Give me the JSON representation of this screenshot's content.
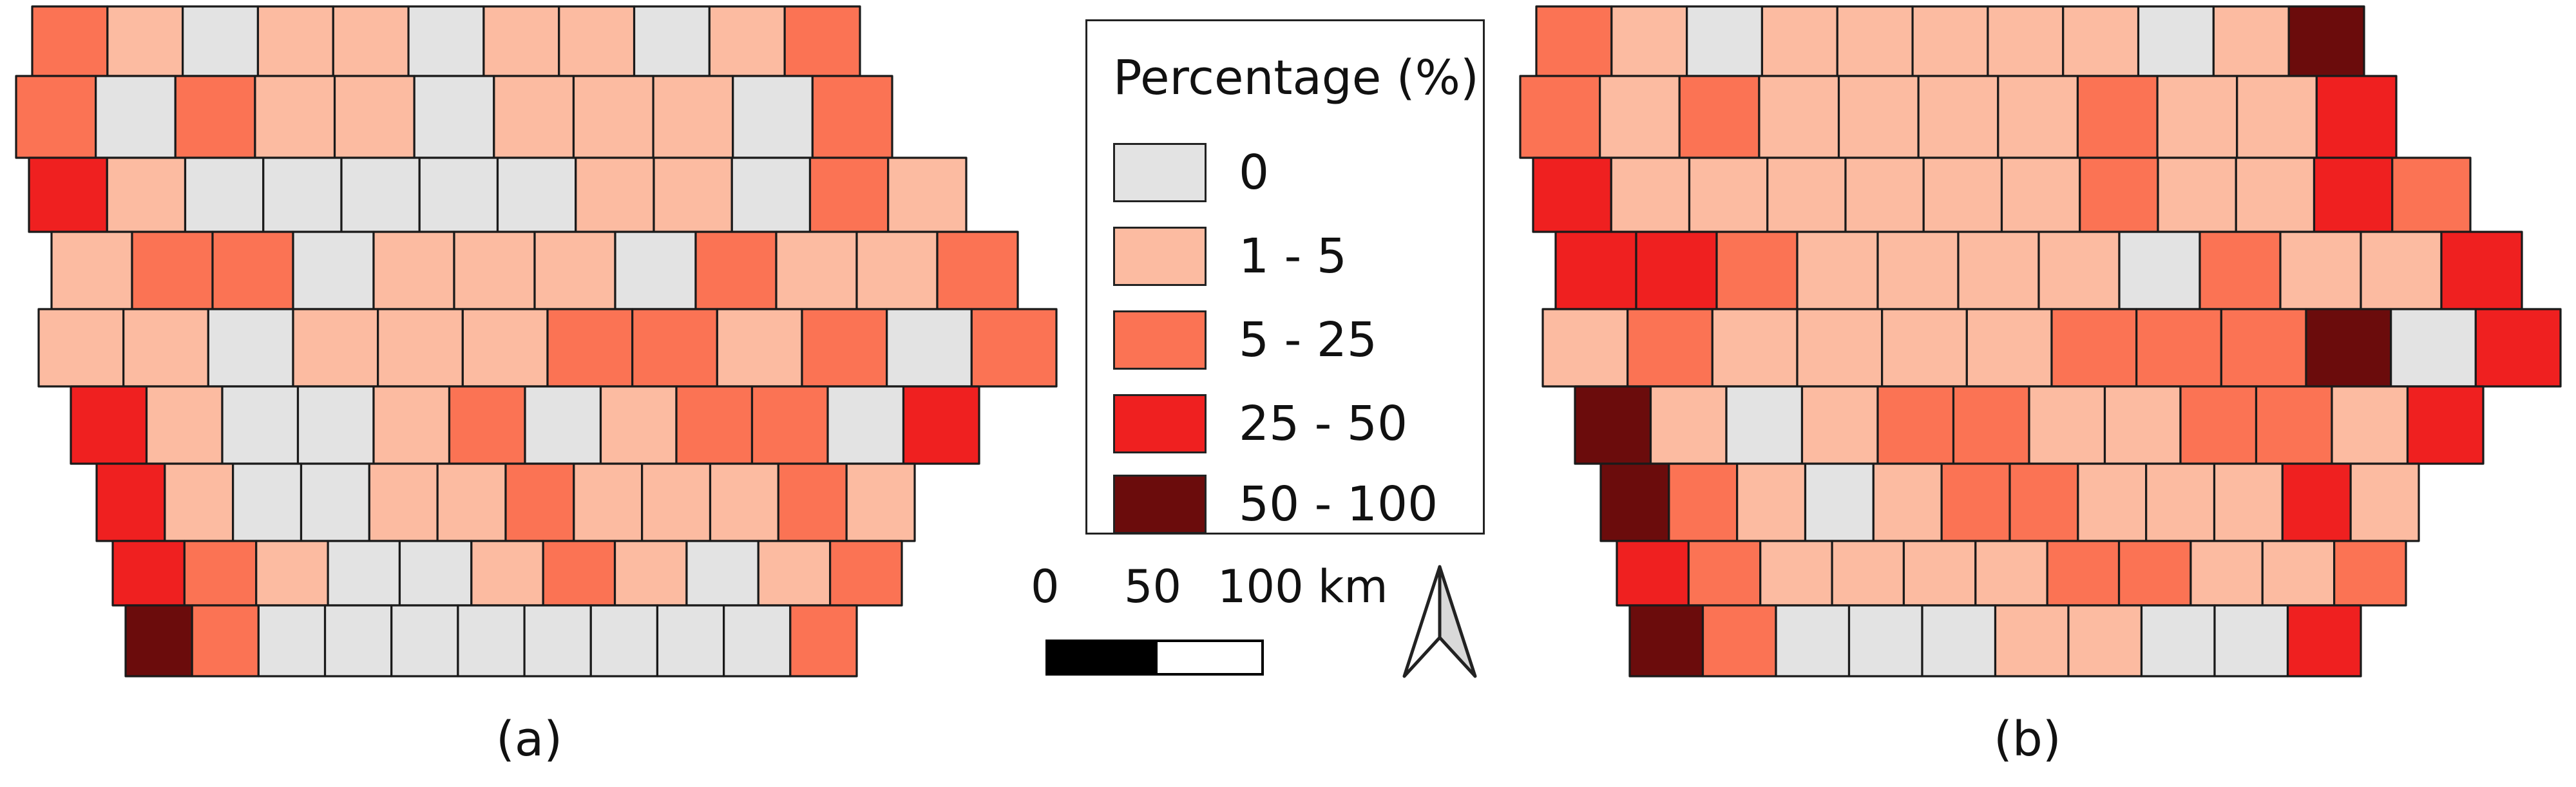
{
  "colors": {
    "0": "#e3e3e3",
    "1-5": "#fcbba1",
    "5-25": "#fb7354",
    "25-50": "#ef2020",
    "50-100": "#6b0c0c"
  },
  "legend": {
    "title": "Percentage (%)",
    "classes": [
      {
        "key": "0",
        "label": "0"
      },
      {
        "key": "1-5",
        "label": "1 - 5"
      },
      {
        "key": "5-25",
        "label": "5 - 25"
      },
      {
        "key": "25-50",
        "label": "25 - 50"
      },
      {
        "key": "50-100",
        "label": "50 - 100"
      }
    ]
  },
  "scale_bar": {
    "ticks": [
      "0",
      "50",
      "100 km"
    ]
  },
  "north_arrow": {
    "icon": "north-arrow-icon"
  },
  "maps": [
    {
      "label": "(a)",
      "rows": [
        [
          "5-25",
          "1-5",
          "0",
          "1-5",
          "1-5",
          "0",
          "1-5",
          "1-5",
          "0",
          "1-5",
          "5-25"
        ],
        [
          "5-25",
          "0",
          "5-25",
          "1-5",
          "1-5",
          "0",
          "1-5",
          "1-5",
          "1-5",
          "0",
          "5-25"
        ],
        [
          "25-50",
          "1-5",
          "0",
          "0",
          "0",
          "0",
          "0",
          "1-5",
          "1-5",
          "0",
          "5-25",
          "1-5"
        ],
        [
          "1-5",
          "5-25",
          "5-25",
          "0",
          "1-5",
          "1-5",
          "1-5",
          "0",
          "5-25",
          "1-5",
          "1-5",
          "5-25"
        ],
        [
          "1-5",
          "1-5",
          "0",
          "1-5",
          "1-5",
          "1-5",
          "5-25",
          "5-25",
          "1-5",
          "5-25",
          "0",
          "5-25"
        ],
        [
          "25-50",
          "1-5",
          "0",
          "0",
          "1-5",
          "5-25",
          "0",
          "1-5",
          "5-25",
          "5-25",
          "0",
          "25-50"
        ],
        [
          "25-50",
          "1-5",
          "0",
          "0",
          "1-5",
          "1-5",
          "5-25",
          "1-5",
          "1-5",
          "1-5",
          "5-25",
          "1-5"
        ],
        [
          "25-50",
          "5-25",
          "1-5",
          "0",
          "0",
          "1-5",
          "5-25",
          "1-5",
          "0",
          "1-5",
          "5-25"
        ],
        [
          "50-100",
          "5-25",
          "0",
          "0",
          "0",
          "0",
          "0",
          "0",
          "0",
          "0",
          "5-25"
        ]
      ]
    },
    {
      "label": "(b)",
      "rows": [
        [
          "5-25",
          "1-5",
          "0",
          "1-5",
          "1-5",
          "1-5",
          "1-5",
          "1-5",
          "0",
          "1-5",
          "50-100"
        ],
        [
          "5-25",
          "1-5",
          "5-25",
          "1-5",
          "1-5",
          "1-5",
          "1-5",
          "5-25",
          "1-5",
          "1-5",
          "25-50"
        ],
        [
          "25-50",
          "1-5",
          "1-5",
          "1-5",
          "1-5",
          "1-5",
          "1-5",
          "5-25",
          "1-5",
          "1-5",
          "25-50",
          "5-25"
        ],
        [
          "25-50",
          "25-50",
          "5-25",
          "1-5",
          "1-5",
          "1-5",
          "1-5",
          "0",
          "5-25",
          "1-5",
          "1-5",
          "25-50"
        ],
        [
          "1-5",
          "5-25",
          "1-5",
          "1-5",
          "1-5",
          "1-5",
          "5-25",
          "5-25",
          "5-25",
          "50-100",
          "0",
          "25-50"
        ],
        [
          "50-100",
          "1-5",
          "0",
          "1-5",
          "5-25",
          "5-25",
          "1-5",
          "1-5",
          "5-25",
          "5-25",
          "1-5",
          "25-50"
        ],
        [
          "50-100",
          "5-25",
          "1-5",
          "0",
          "1-5",
          "5-25",
          "5-25",
          "1-5",
          "1-5",
          "1-5",
          "25-50",
          "1-5"
        ],
        [
          "25-50",
          "5-25",
          "1-5",
          "1-5",
          "1-5",
          "1-5",
          "5-25",
          "5-25",
          "1-5",
          "1-5",
          "5-25"
        ],
        [
          "50-100",
          "5-25",
          "0",
          "0",
          "0",
          "1-5",
          "1-5",
          "0",
          "0",
          "25-50"
        ]
      ]
    }
  ]
}
